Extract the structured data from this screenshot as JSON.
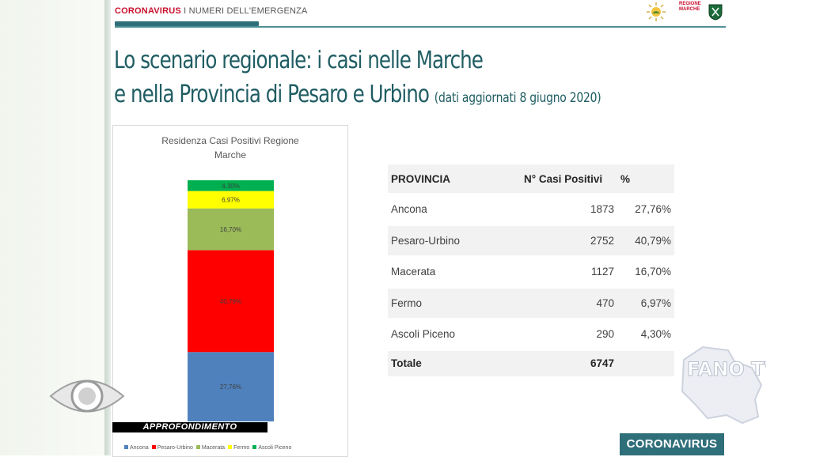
{
  "header": {
    "brand_red": "CORONAVIRUS",
    "brand_rest": " I NUMERI DELL'EMERGENZA",
    "regione_logo_text": [
      "REGIONE",
      "MARCHE"
    ]
  },
  "slide": {
    "title_line1": "Lo scenario regionale: i casi nelle Marche",
    "title_line2": "e nella Provincia di Pesaro e Urbino",
    "title_note": "(dati aggiornati 8 giugno 2020)"
  },
  "chart_data": {
    "type": "bar",
    "stacked": true,
    "title": "Residenza Casi Positivi Regione Marche",
    "categories": [
      ""
    ],
    "series": [
      {
        "name": "Ancona",
        "values": [
          27.76
        ],
        "label": "27,76%",
        "color": "#4f81bd"
      },
      {
        "name": "Pesaro-Urbino",
        "values": [
          40.79
        ],
        "label": "40,79%",
        "color": "#ff0000"
      },
      {
        "name": "Macerata",
        "values": [
          16.7
        ],
        "label": "16,70%",
        "color": "#9bbb59"
      },
      {
        "name": "Fermo",
        "values": [
          6.97
        ],
        "label": "6,97%",
        "color": "#ffff00"
      },
      {
        "name": "Ascoli Piceno",
        "values": [
          4.3
        ],
        "label": "4,30%",
        "color": "#00b050"
      }
    ],
    "ylim": [
      0,
      100
    ],
    "legend_position": "bottom"
  },
  "table": {
    "headers": [
      "PROVINCIA",
      "N° Casi Positivi",
      "%"
    ],
    "rows": [
      {
        "provincia": "Ancona",
        "casi": "1873",
        "pct": "27,76%"
      },
      {
        "provincia": "Pesaro-Urbino",
        "casi": "2752",
        "pct": "40,79%"
      },
      {
        "provincia": "Macerata",
        "casi": "1127",
        "pct": "16,70%"
      },
      {
        "provincia": "Fermo",
        "casi": "470",
        "pct": "6,97%"
      },
      {
        "provincia": "Ascoli Piceno",
        "casi": "290",
        "pct": "4,30%"
      }
    ],
    "total_label": "Totale",
    "total_value": "6747"
  },
  "overlay": {
    "approfondimento": "APPROFONDIMENTO",
    "corona_badge": "CORONAVIRUS",
    "fano_tv": "FANO TV"
  },
  "colors": {
    "title": "#1f5d63",
    "accent": "#2f6f7a",
    "brand_red": "#c8102e"
  }
}
